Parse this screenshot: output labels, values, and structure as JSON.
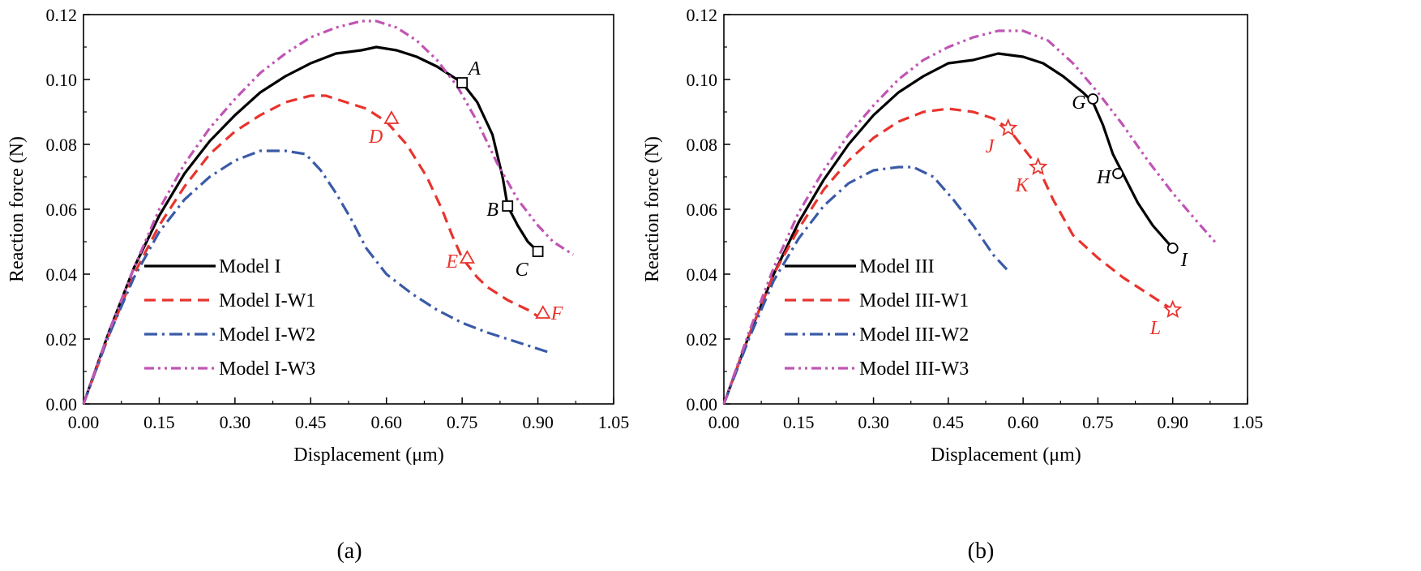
{
  "chart_data": [
    {
      "type": "line",
      "panel_label": "(a)",
      "xlabel": "Displacement (μm)",
      "ylabel": "Reaction force (N)",
      "xlim": [
        0,
        1.05
      ],
      "ylim": [
        0,
        0.12
      ],
      "xticks": [
        "0.00",
        "0.15",
        "0.30",
        "0.45",
        "0.60",
        "0.75",
        "0.90",
        "1.05"
      ],
      "yticks": [
        "0.00",
        "0.02",
        "0.04",
        "0.06",
        "0.08",
        "0.10",
        "0.12"
      ],
      "legend_position": "bottom-left",
      "series": [
        {
          "name": "Model I",
          "style": "solid",
          "color": "#000000",
          "x": [
            0,
            0.05,
            0.1,
            0.15,
            0.2,
            0.25,
            0.3,
            0.35,
            0.4,
            0.45,
            0.5,
            0.55,
            0.58,
            0.62,
            0.66,
            0.7,
            0.75,
            0.78,
            0.81,
            0.83,
            0.84,
            0.86,
            0.88,
            0.9
          ],
          "y": [
            0,
            0.022,
            0.042,
            0.058,
            0.071,
            0.081,
            0.089,
            0.096,
            0.101,
            0.105,
            0.108,
            0.109,
            0.11,
            0.109,
            0.107,
            0.104,
            0.099,
            0.093,
            0.083,
            0.07,
            0.061,
            0.055,
            0.05,
            0.047
          ]
        },
        {
          "name": "Model I-W1",
          "style": "dashed",
          "color": "#e8342e",
          "x": [
            0,
            0.05,
            0.1,
            0.15,
            0.2,
            0.25,
            0.3,
            0.35,
            0.4,
            0.45,
            0.48,
            0.52,
            0.56,
            0.6,
            0.64,
            0.68,
            0.71,
            0.73,
            0.75,
            0.78,
            0.8,
            0.84,
            0.88,
            0.9
          ],
          "y": [
            0,
            0.021,
            0.04,
            0.055,
            0.067,
            0.077,
            0.084,
            0.089,
            0.093,
            0.095,
            0.095,
            0.093,
            0.091,
            0.087,
            0.08,
            0.07,
            0.06,
            0.052,
            0.045,
            0.039,
            0.036,
            0.032,
            0.029,
            0.027
          ]
        },
        {
          "name": "Model I-W2",
          "style": "dash-dot",
          "color": "#3a5aa8",
          "x": [
            0,
            0.05,
            0.1,
            0.15,
            0.2,
            0.25,
            0.3,
            0.35,
            0.4,
            0.44,
            0.47,
            0.5,
            0.53,
            0.56,
            0.6,
            0.65,
            0.7,
            0.75,
            0.8,
            0.86,
            0.92
          ],
          "y": [
            0,
            0.021,
            0.039,
            0.053,
            0.063,
            0.07,
            0.075,
            0.078,
            0.078,
            0.077,
            0.072,
            0.065,
            0.057,
            0.048,
            0.04,
            0.034,
            0.029,
            0.025,
            0.022,
            0.019,
            0.016
          ]
        },
        {
          "name": "Model I-W3",
          "style": "dash-dot-dot",
          "color": "#c055b5",
          "x": [
            0,
            0.05,
            0.1,
            0.15,
            0.2,
            0.25,
            0.3,
            0.35,
            0.4,
            0.45,
            0.5,
            0.55,
            0.58,
            0.62,
            0.66,
            0.7,
            0.74,
            0.78,
            0.82,
            0.86,
            0.9,
            0.93,
            0.97
          ],
          "y": [
            0,
            0.022,
            0.042,
            0.06,
            0.074,
            0.085,
            0.094,
            0.102,
            0.108,
            0.113,
            0.116,
            0.118,
            0.118,
            0.116,
            0.112,
            0.106,
            0.098,
            0.087,
            0.074,
            0.063,
            0.055,
            0.05,
            0.046
          ]
        }
      ],
      "markers": [
        {
          "label": "A",
          "x": 0.75,
          "y": 0.099,
          "shape": "square",
          "color": "#000000",
          "label_side": "above-right"
        },
        {
          "label": "B",
          "x": 0.84,
          "y": 0.061,
          "shape": "square",
          "color": "#000000",
          "label_side": "left"
        },
        {
          "label": "C",
          "x": 0.9,
          "y": 0.047,
          "shape": "square",
          "color": "#000000",
          "label_side": "below-left"
        },
        {
          "label": "D",
          "x": 0.61,
          "y": 0.088,
          "shape": "triangle",
          "color": "#e8342e",
          "label_side": "below-left"
        },
        {
          "label": "E",
          "x": 0.76,
          "y": 0.045,
          "shape": "triangle",
          "color": "#e8342e",
          "label_side": "left"
        },
        {
          "label": "F",
          "x": 0.91,
          "y": 0.028,
          "shape": "triangle",
          "color": "#e8342e",
          "label_side": "right"
        }
      ]
    },
    {
      "type": "line",
      "panel_label": "(b)",
      "xlabel": "Displacement (μm)",
      "ylabel": "Reaction force (N)",
      "xlim": [
        0,
        1.05
      ],
      "ylim": [
        0,
        0.12
      ],
      "xticks": [
        "0.00",
        "0.15",
        "0.30",
        "0.45",
        "0.60",
        "0.75",
        "0.90",
        "1.05"
      ],
      "yticks": [
        "0.00",
        "0.02",
        "0.04",
        "0.06",
        "0.08",
        "0.10",
        "0.12"
      ],
      "legend_position": "bottom-left",
      "series": [
        {
          "name": "Model III",
          "style": "solid",
          "color": "#000000",
          "x": [
            0,
            0.05,
            0.1,
            0.15,
            0.2,
            0.25,
            0.3,
            0.35,
            0.4,
            0.45,
            0.5,
            0.55,
            0.6,
            0.64,
            0.68,
            0.72,
            0.74,
            0.76,
            0.78,
            0.8,
            0.83,
            0.86,
            0.9
          ],
          "y": [
            0,
            0.021,
            0.04,
            0.056,
            0.069,
            0.08,
            0.089,
            0.096,
            0.101,
            0.105,
            0.106,
            0.108,
            0.107,
            0.105,
            0.101,
            0.096,
            0.093,
            0.086,
            0.077,
            0.071,
            0.062,
            0.055,
            0.048
          ]
        },
        {
          "name": "Model III-W1",
          "style": "dashed",
          "color": "#e8342e",
          "x": [
            0,
            0.05,
            0.1,
            0.15,
            0.2,
            0.25,
            0.3,
            0.35,
            0.4,
            0.45,
            0.5,
            0.54,
            0.57,
            0.6,
            0.63,
            0.66,
            0.7,
            0.75,
            0.8,
            0.85,
            0.9
          ],
          "y": [
            0,
            0.021,
            0.04,
            0.054,
            0.066,
            0.075,
            0.082,
            0.087,
            0.09,
            0.091,
            0.09,
            0.088,
            0.085,
            0.079,
            0.073,
            0.063,
            0.052,
            0.045,
            0.039,
            0.034,
            0.029
          ]
        },
        {
          "name": "Model III-W2",
          "style": "dash-dot",
          "color": "#3a5aa8",
          "x": [
            0,
            0.05,
            0.1,
            0.15,
            0.2,
            0.25,
            0.3,
            0.35,
            0.38,
            0.42,
            0.46,
            0.5,
            0.54,
            0.57
          ],
          "y": [
            0,
            0.02,
            0.038,
            0.051,
            0.061,
            0.068,
            0.072,
            0.073,
            0.073,
            0.07,
            0.063,
            0.055,
            0.046,
            0.041
          ]
        },
        {
          "name": "Model III-W3",
          "style": "dash-dot-dot",
          "color": "#c055b5",
          "x": [
            0,
            0.05,
            0.1,
            0.15,
            0.2,
            0.25,
            0.3,
            0.35,
            0.4,
            0.45,
            0.5,
            0.55,
            0.6,
            0.65,
            0.7,
            0.75,
            0.8,
            0.85,
            0.9,
            0.95,
            0.99
          ],
          "y": [
            0,
            0.022,
            0.042,
            0.059,
            0.072,
            0.083,
            0.092,
            0.1,
            0.106,
            0.11,
            0.113,
            0.115,
            0.115,
            0.112,
            0.105,
            0.096,
            0.086,
            0.075,
            0.065,
            0.056,
            0.049
          ]
        }
      ],
      "markers": [
        {
          "label": "G",
          "x": 0.74,
          "y": 0.094,
          "shape": "circle",
          "color": "#000000",
          "label_side": "left"
        },
        {
          "label": "H",
          "x": 0.79,
          "y": 0.071,
          "shape": "circle",
          "color": "#000000",
          "label_side": "left"
        },
        {
          "label": "I",
          "x": 0.9,
          "y": 0.048,
          "shape": "circle",
          "color": "#000000",
          "label_side": "below-right"
        },
        {
          "label": "J",
          "x": 0.57,
          "y": 0.085,
          "shape": "star",
          "color": "#e8342e",
          "label_side": "below-left"
        },
        {
          "label": "K",
          "x": 0.63,
          "y": 0.073,
          "shape": "star",
          "color": "#e8342e",
          "label_side": "below-left"
        },
        {
          "label": "L",
          "x": 0.9,
          "y": 0.029,
          "shape": "star",
          "color": "#e8342e",
          "label_side": "below-left"
        }
      ]
    }
  ]
}
